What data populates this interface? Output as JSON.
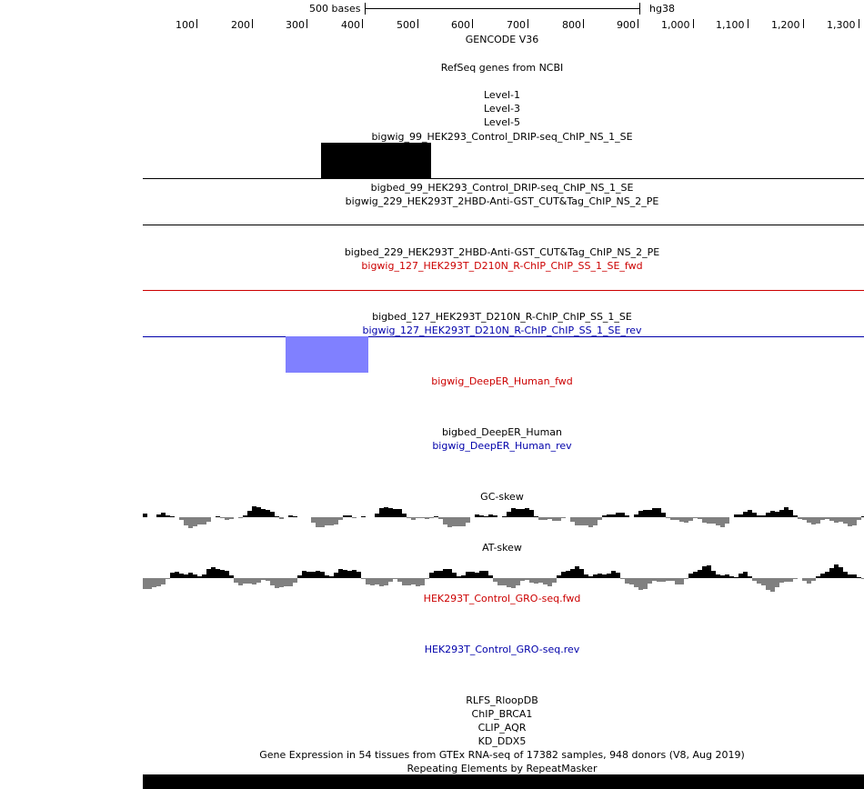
{
  "ruler": {
    "scale_label": "500 bases",
    "assembly": "hg38",
    "ticks": [
      "100",
      "200",
      "300",
      "400",
      "500",
      "600",
      "700",
      "800",
      "900",
      "1,000",
      "1,100",
      "1,200",
      "1,300"
    ]
  },
  "tracks": {
    "gencode": "GENCODE V36",
    "refseq": "RefSeq genes from NCBI",
    "level1": "Level-1",
    "level3": "Level-3",
    "level5": "Level-5",
    "bigwig_99": "bigwig_99_HEK293_Control_DRIP-seq_ChIP_NS_1_SE",
    "bigbed_99": "bigbed_99_HEK293_Control_DRIP-seq_ChIP_NS_1_SE",
    "bigwig_229": "bigwig_229_HEK293T_2HBD-Anti-GST_CUT&Tag_ChIP_NS_2_PE",
    "bigbed_229": "bigbed_229_HEK293T_2HBD-Anti-GST_CUT&Tag_ChIP_NS_2_PE",
    "bigwig_127_fwd": "bigwig_127_HEK293T_D210N_R-ChIP_ChIP_SS_1_SE_fwd",
    "bigbed_127": "bigbed_127_HEK293T_D210N_R-ChIP_ChIP_SS_1_SE",
    "bigwig_127_rev": "bigwig_127_HEK293T_D210N_R-ChIP_ChIP_SS_1_SE_rev",
    "deeper_fwd": "bigwig_DeepER_Human_fwd",
    "deeper_bed": "bigbed_DeepER_Human",
    "deeper_rev": "bigwig_DeepER_Human_rev",
    "gc_skew": "GC-skew",
    "at_skew": "AT-skew",
    "gro_fwd": "HEK293T_Control_GRO-seq.fwd",
    "gro_rev": "HEK293T_Control_GRO-seq.rev",
    "rlfs": "RLFS_RloopDB",
    "chip_brca1": "ChIP_BRCA1",
    "clip_aqr": "CLIP_AQR",
    "kd_ddx5": "KD_DDX5",
    "gtex": "Gene Expression in 54 tissues from GTEx RNA-seq of 17382 samples, 948 donors (V8, Aug 2019)",
    "repeatmasker": "Repeating Elements by RepeatMasker"
  },
  "colors": {
    "black": "#000000",
    "fwd": "#cc0000",
    "rev": "#0000aa",
    "rev_block": "#8080ff",
    "skew_neg": "#808080"
  }
}
